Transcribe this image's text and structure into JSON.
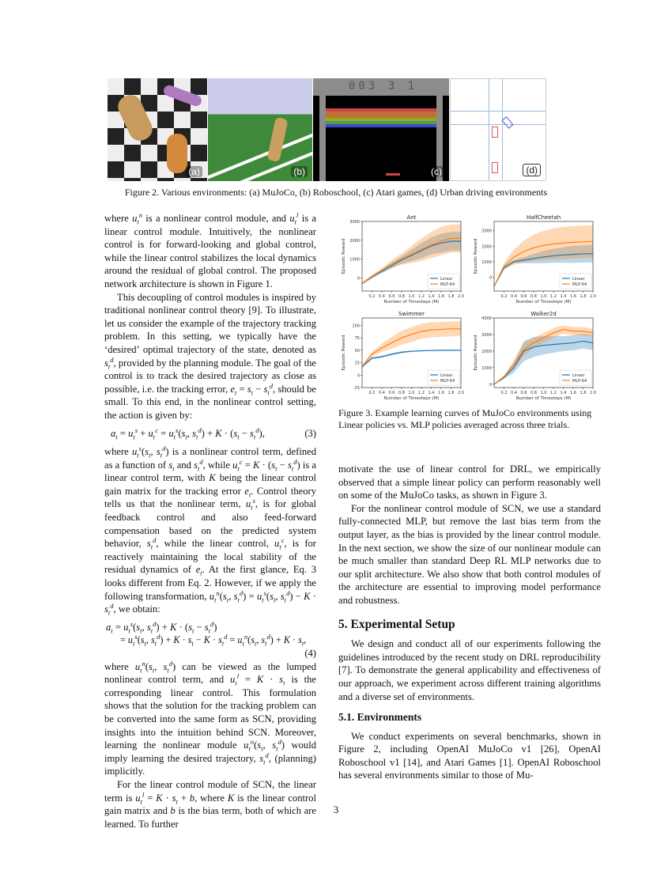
{
  "figure2": {
    "panels": [
      {
        "label": "(a)",
        "name": "MuJoCo"
      },
      {
        "label": "(b)",
        "name": "Roboschool"
      },
      {
        "label": "(c)",
        "name": "Atari games",
        "score": "003 3 1"
      },
      {
        "label": "(d)",
        "name": "Urban driving"
      }
    ],
    "caption": "Figure 2. Various environments: (a) MuJoCo, (b) Roboschool, (c) Atari games, (d) Urban driving environments"
  },
  "left_column": {
    "p1": "where <i>u</i><sub><i>t</i></sub><sup><i>n</i></sup> is a nonlinear control module, and <i>u</i><sub><i>t</i></sub><sup><i>l</i></sup> is a linear control module. Intuitively, the nonlinear control is for forward-looking and global control, while the linear control stabilizes the local dynamics around the residual of global control. The proposed network architecture is shown in Figure 1.",
    "p2": "This decoupling of control modules is inspired by traditional nonlinear control theory [9]. To illustrate, let us consider the example of the trajectory tracking problem. In this setting, we typically have the ‘desired’ optimal trajectory of the state, denoted as <i>s</i><sub><i>t</i></sub><sup><i>d</i></sup>, provided by the planning module. The goal of the control is to track the desired trajectory as close as possible, i.e. the tracking error, <i>e</i><sub><i>t</i></sub> = <i>s</i><sub><i>t</i></sub> − <i>s</i><sub><i>t</i></sub><sup><i>d</i></sup>, should be small. To this end, in the nonlinear control setting, the action is given by:",
    "eq3": "<i>a</i><sub><i>t</i></sub> = <i>u</i><sub><i>t</i></sub><sup><i>s</i></sup> + <i>u</i><sub><i>t</i></sub><sup><i>c</i></sup> = <i>u</i><sub><i>t</i></sub><sup><i>s</i></sup>(<i>s</i><sub><i>t</i></sub>, <i>s</i><sub><i>t</i></sub><sup><i>d</i></sup>) + <i>K</i> · (<i>s</i><sub><i>t</i></sub> − <i>s</i><sub><i>t</i></sub><sup><i>d</i></sup>),",
    "eq3_num": "(3)",
    "p3": "where <i>u</i><sub><i>t</i></sub><sup><i>s</i></sup>(<i>s</i><sub><i>t</i></sub>, <i>s</i><sub><i>t</i></sub><sup><i>d</i></sup>) is a nonlinear control term, defined as a function of <i>s</i><sub><i>t</i></sub> and <i>s</i><sub><i>t</i></sub><sup><i>d</i></sup>, while <i>u</i><sub><i>t</i></sub><sup><i>c</i></sup> = <i>K</i> · (<i>s</i><sub><i>t</i></sub> − <i>s</i><sub><i>t</i></sub><sup><i>d</i></sup>) is a linear control term, with <i>K</i> being the linear control gain matrix for the tracking error <i>e</i><sub><i>t</i></sub>. Control theory tells us that the nonlinear term, <i>u</i><sub><i>t</i></sub><sup><i>s</i></sup>, is for global feedback control and also feed-forward compensation based on the predicted system behavior, <i>s</i><sub><i>t</i></sub><sup><i>d</i></sup>, while the linear control, <i>u</i><sub><i>t</i></sub><sup><i>c</i></sup>, is for reactively maintaining the local stability of the residual dynamics of <i>e</i><sub><i>t</i></sub>. At the first glance, Eq. 3 looks different from Eq. 2. However, if we apply the following transformation, <i>u</i><sub><i>t</i></sub><sup><i>n</i></sup>(<i>s</i><sub><i>t</i></sub>, <i>s</i><sub><i>t</i></sub><sup><i>d</i></sup>) = <i>u</i><sub><i>t</i></sub><sup><i>s</i></sup>(<i>s</i><sub><i>t</i></sub>, <i>s</i><sub><i>t</i></sub><sup><i>d</i></sup>) − <i>K</i> · <i>s</i><sub><i>t</i></sub><sup><i>d</i></sup>, we obtain:",
    "eq4_line1": "<i>a</i><sub><i>t</i></sub> = <i>u</i><sub><i>t</i></sub><sup><i>s</i></sup>(<i>s</i><sub><i>t</i></sub>, <i>s</i><sub><i>t</i></sub><sup><i>d</i></sup>) + <i>K</i> · (<i>s</i><sub><i>t</i></sub> − <i>s</i><sub><i>t</i></sub><sup><i>d</i></sup>)",
    "eq4_line2": "= <i>u</i><sub><i>t</i></sub><sup><i>s</i></sup>(<i>s</i><sub><i>t</i></sub>, <i>s</i><sub><i>t</i></sub><sup><i>d</i></sup>) + <i>K</i> · <i>s</i><sub><i>t</i></sub> − <i>K</i> · <i>s</i><sub><i>t</i></sub><sup><i>d</i></sup> = <i>u</i><sub><i>t</i></sub><sup><i>n</i></sup>(<i>s</i><sub><i>t</i></sub>, <i>s</i><sub><i>t</i></sub><sup><i>d</i></sup>) + <i>K</i> · <i>s</i><sub><i>t</i></sub>,",
    "eq4_num": "(4)",
    "p4": "where <i>u</i><sub><i>t</i></sub><sup><i>n</i></sup>(<i>s</i><sub><i>t</i></sub>, <i>s</i><sub><i>t</i></sub><sup><i>d</i></sup>) can be viewed as the lumped nonlinear control term, and <i>u</i><sub><i>t</i></sub><sup><i>l</i></sup> = <i>K</i> · <i>s</i><sub><i>t</i></sub> is the corresponding linear control. This formulation shows that the solution for the tracking problem can be converted into the same form as SCN, providing insights into the intuition behind SCN. Moreover, learning the nonlinear module <i>u</i><sub><i>t</i></sub><sup><i>n</i></sup>(<i>s</i><sub><i>t</i></sub>, <i>s</i><sub><i>t</i></sub><sup><i>d</i></sup>) would imply learning the desired trajectory, <i>s</i><sub><i>t</i></sub><sup><i>d</i></sup>, (planning) implicitly.",
    "p5": "For the linear control module of SCN, the linear term is <i>u</i><sub><i>t</i></sub><sup><i>l</i></sup> = <i>K</i> · <i>s</i><sub><i>t</i></sub> + <i>b</i>, where <i>K</i> is the linear control gain matrix and <i>b</i> is the bias term, both of which are learned. To further"
  },
  "figure3": {
    "caption": "Figure 3. Example learning curves of MuJoCo environments using Linear policies vs. MLP policies averaged across three trials."
  },
  "chart_data": [
    {
      "type": "line",
      "title": "Ant",
      "xlabel": "Number of Timesteps (M)",
      "ylabel": "Episodic Reward",
      "xlim": [
        0,
        2.0
      ],
      "ylim": [
        -700,
        3000
      ],
      "xticks": [
        "0.2",
        "0.4",
        "0.6",
        "0.8",
        "1.0",
        "1.2",
        "1.4",
        "1.6",
        "1.8",
        "2.0"
      ],
      "yticks": [
        0,
        1000,
        2000,
        3000
      ],
      "x": [
        0,
        0.2,
        0.4,
        0.6,
        0.8,
        1.0,
        1.2,
        1.4,
        1.6,
        1.8,
        2.0
      ],
      "series": [
        {
          "name": "Linear",
          "color": "#1f77b4",
          "values": [
            -300,
            50,
            350,
            650,
            950,
            1200,
            1450,
            1700,
            1850,
            1950,
            1950
          ],
          "band": [
            50,
            80,
            100,
            150,
            200,
            300,
            400,
            450,
            500,
            500,
            500
          ]
        },
        {
          "name": "MLP-64",
          "color": "#ff7f0e",
          "values": [
            -300,
            80,
            400,
            750,
            1000,
            1250,
            1500,
            1750,
            1950,
            2100,
            2100
          ],
          "band": [
            50,
            80,
            120,
            200,
            300,
            450,
            600,
            700,
            750,
            750,
            750
          ]
        }
      ],
      "legend": "bottom-right",
      "grid": false
    },
    {
      "type": "line",
      "title": "HalfCheetah",
      "xlabel": "Number of Timesteps (M)",
      "ylabel": "Episodic Reward",
      "xlim": [
        0,
        2.0
      ],
      "ylim": [
        -900,
        3600
      ],
      "xticks": [
        "0.2",
        "0.4",
        "0.6",
        "0.8",
        "1.0",
        "1.2",
        "1.4",
        "1.6",
        "1.8",
        "2.0"
      ],
      "yticks": [
        0,
        1000,
        2000,
        3000
      ],
      "x": [
        0,
        0.2,
        0.4,
        0.6,
        0.8,
        1.0,
        1.2,
        1.4,
        1.6,
        1.8,
        2.0
      ],
      "series": [
        {
          "name": "Linear",
          "color": "#1f77b4",
          "values": [
            -600,
            600,
            1000,
            1100,
            1200,
            1300,
            1380,
            1430,
            1470,
            1500,
            1520
          ],
          "band": [
            50,
            100,
            100,
            200,
            300,
            400,
            450,
            500,
            550,
            550,
            580
          ]
        },
        {
          "name": "MLP-64",
          "color": "#ff7f0e",
          "values": [
            -600,
            700,
            1300,
            1650,
            1900,
            2050,
            2150,
            2200,
            2250,
            2280,
            2300
          ],
          "band": [
            50,
            200,
            500,
            700,
            850,
            950,
            1000,
            1050,
            1050,
            1050,
            1050
          ]
        }
      ],
      "legend": "bottom-right",
      "grid": false
    },
    {
      "type": "line",
      "title": "Swimmer",
      "xlabel": "Number of Timesteps (M)",
      "ylabel": "Episodic Reward",
      "xlim": [
        0,
        2.0
      ],
      "ylim": [
        -25,
        115
      ],
      "xticks": [
        "0.2",
        "0.4",
        "0.6",
        "0.8",
        "1.0",
        "1.2",
        "1.4",
        "1.6",
        "1.8",
        "2.0"
      ],
      "yticks": [
        -25,
        0,
        25,
        50,
        75,
        100
      ],
      "x": [
        0,
        0.2,
        0.4,
        0.6,
        0.8,
        1.0,
        1.2,
        1.4,
        1.6,
        1.8,
        2.0
      ],
      "series": [
        {
          "name": "Linear",
          "color": "#1f77b4",
          "values": [
            17,
            34,
            37,
            42,
            46,
            48,
            49,
            49.5,
            50,
            50,
            50
          ],
          "band": [
            3,
            2,
            2,
            2,
            2,
            1,
            1,
            1,
            1,
            1,
            1
          ]
        },
        {
          "name": "MLP-64",
          "color": "#ff7f0e",
          "values": [
            17,
            42,
            55,
            65,
            75,
            82,
            88,
            91,
            92,
            93,
            93
          ],
          "band": [
            3,
            5,
            8,
            12,
            14,
            15,
            15,
            15,
            15,
            15,
            15
          ]
        }
      ],
      "legend": "bottom-right",
      "grid": false
    },
    {
      "type": "line",
      "title": "Walker2d",
      "xlabel": "Number of Timesteps (M)",
      "ylabel": "Episodic Reward",
      "xlim": [
        0,
        2.0
      ],
      "ylim": [
        -200,
        4000
      ],
      "xticks": [
        "0.2",
        "0.4",
        "0.6",
        "0.8",
        "1.0",
        "1.2",
        "1.4",
        "1.6",
        "1.8",
        "2.0"
      ],
      "yticks": [
        0,
        1000,
        2000,
        3000,
        4000
      ],
      "x": [
        0,
        0.2,
        0.4,
        0.6,
        0.8,
        1.0,
        1.2,
        1.4,
        1.6,
        1.8,
        2.0
      ],
      "series": [
        {
          "name": "Linear",
          "color": "#1f77b4",
          "values": [
            0,
            400,
            1000,
            2000,
            2250,
            2350,
            2400,
            2450,
            2500,
            2600,
            2500
          ],
          "band": [
            30,
            80,
            300,
            600,
            600,
            550,
            500,
            450,
            450,
            450,
            450
          ]
        },
        {
          "name": "MLP-64",
          "color": "#ff7f0e",
          "values": [
            0,
            450,
            1200,
            2100,
            2500,
            2800,
            3100,
            3300,
            3200,
            3200,
            3100
          ],
          "band": [
            30,
            80,
            250,
            400,
            300,
            300,
            300,
            250,
            250,
            250,
            250
          ]
        }
      ],
      "legend": "bottom-right",
      "grid": false
    }
  ],
  "right_column": {
    "p1": "motivate the use of linear control for DRL, we empirically observed that a simple linear policy can perform reasonably well on some of the MuJoCo tasks, as shown in Figure 3.",
    "p2": "For the nonlinear control module of SCN, we use a standard fully-connected MLP, but remove the last bias term from the output layer, as the bias is provided by the linear control module. In the next section, we show the size of our nonlinear module can be much smaller than standard Deep RL MLP networks due to our split architecture. We also show that both control modules of the architecture are essential to improving model performance and robustness.",
    "h5": "5. Experimental Setup",
    "p3": "We design and conduct all of our experiments following the guidelines introduced by the recent study on DRL reproducibility [7]. To demonstrate the general applicability and effectiveness of our approach, we experiment across different training algorithms and a diverse set of environments.",
    "h51": "5.1. Environments",
    "p4": "We conduct experiments on several benchmarks, shown in Figure 2, including OpenAI MuJoCo v1 [26], OpenAI Roboschool v1 [14], and Atari Games [1]. OpenAI Roboschool has several environments similar to those of Mu-"
  },
  "page_number": "3"
}
